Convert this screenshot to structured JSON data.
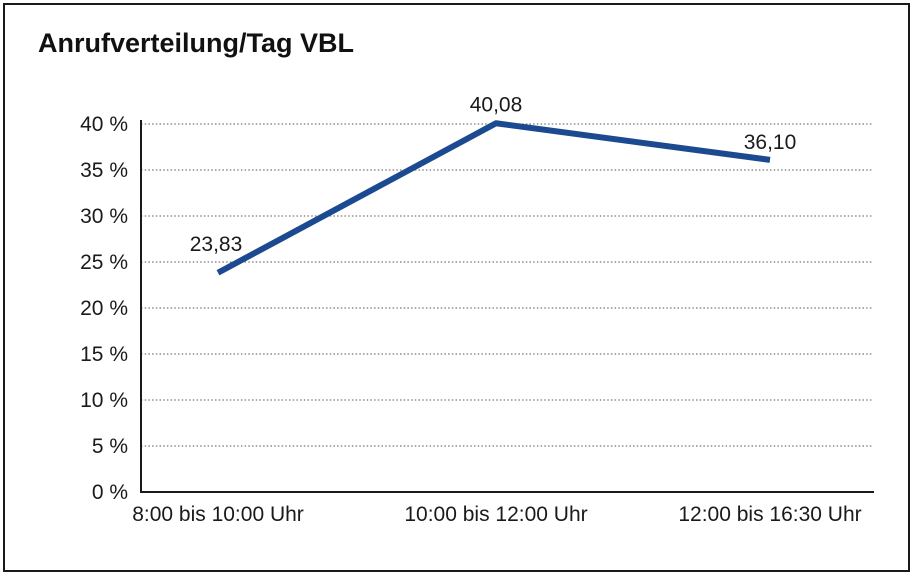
{
  "chart": {
    "title": "Anrufverteilung/Tag VBL"
  },
  "chart_data": {
    "type": "line",
    "title": "Anrufverteilung/Tag VBL",
    "categories": [
      "8:00 bis 10:00 Uhr",
      "10:00 bis 12:00 Uhr",
      "12:00 bis 16:30 Uhr"
    ],
    "values": [
      23.83,
      40.08,
      36.1
    ],
    "value_labels": [
      "23,83",
      "40,08",
      "36,10"
    ],
    "xlabel": "",
    "ylabel": "",
    "ylim": [
      0,
      40
    ],
    "ytick_step": 5,
    "ytick_labels": [
      "0 %",
      "5 %",
      "10 %",
      "15 %",
      "20 %",
      "25 %",
      "30 %",
      "35 %",
      "40 %"
    ],
    "grid": "horizontal-dotted",
    "legend": "none",
    "colors": {
      "line": "#1b4a91",
      "axis": "#1a1a1a",
      "gridline": "#777777",
      "text": "#1a1a1a",
      "background": "#ffffff"
    }
  }
}
